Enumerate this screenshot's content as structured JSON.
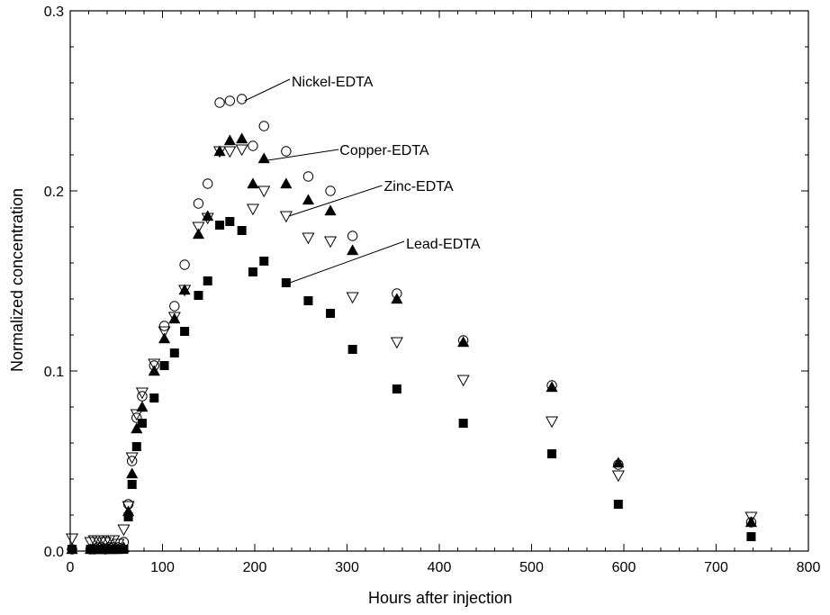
{
  "chart_data": {
    "type": "scatter",
    "xlabel": "Hours after injection",
    "ylabel": "Normalized concentration",
    "xlim": [
      0,
      800
    ],
    "ylim": [
      0,
      0.3
    ],
    "x_major_ticks": [
      0,
      100,
      200,
      300,
      400,
      500,
      600,
      700,
      800
    ],
    "x_tick_labels": [
      "0",
      "100",
      "200",
      "300",
      "400",
      "500",
      "600",
      "700",
      "800"
    ],
    "y_major_ticks": [
      0,
      0.1,
      0.2,
      0.3
    ],
    "y_tick_labels": [
      "0.0",
      "0.1",
      "0.2",
      "0.3"
    ],
    "x_minor_step": 20,
    "y_minor_step": 0.02,
    "grid": false,
    "legend": "none",
    "series": [
      {
        "name": "Nickel-EDTA",
        "marker": "open-circle",
        "points": [
          [
            2,
            0.001
          ],
          [
            22,
            0.001
          ],
          [
            26,
            0.001
          ],
          [
            30,
            0.002
          ],
          [
            34,
            0.002
          ],
          [
            38,
            0.001
          ],
          [
            42,
            0.002
          ],
          [
            47,
            0.002
          ],
          [
            52,
            0.002
          ],
          [
            58,
            0.005
          ],
          [
            63,
            0.026
          ],
          [
            67,
            0.05
          ],
          [
            72,
            0.074
          ],
          [
            78,
            0.086
          ],
          [
            91,
            0.103
          ],
          [
            102,
            0.125
          ],
          [
            113,
            0.136
          ],
          [
            124,
            0.159
          ],
          [
            139,
            0.193
          ],
          [
            149,
            0.204
          ],
          [
            162,
            0.249
          ],
          [
            173,
            0.25
          ],
          [
            186,
            0.251
          ],
          [
            198,
            0.225
          ],
          [
            210,
            0.236
          ],
          [
            234,
            0.222
          ],
          [
            258,
            0.208
          ],
          [
            282,
            0.2
          ],
          [
            306,
            0.175
          ],
          [
            354,
            0.143
          ],
          [
            426,
            0.117
          ],
          [
            522,
            0.092
          ],
          [
            594,
            0.048
          ],
          [
            738,
            0.016
          ]
        ]
      },
      {
        "name": "Copper-EDTA",
        "marker": "filled-triangle",
        "points": [
          [
            2,
            0.001
          ],
          [
            22,
            0.001
          ],
          [
            26,
            0.001
          ],
          [
            30,
            0.001
          ],
          [
            34,
            0.001
          ],
          [
            38,
            0.001
          ],
          [
            42,
            0.001
          ],
          [
            47,
            0.001
          ],
          [
            52,
            0.001
          ],
          [
            58,
            0.002
          ],
          [
            63,
            0.022
          ],
          [
            67,
            0.043
          ],
          [
            72,
            0.068
          ],
          [
            78,
            0.08
          ],
          [
            91,
            0.1
          ],
          [
            102,
            0.118
          ],
          [
            113,
            0.129
          ],
          [
            124,
            0.145
          ],
          [
            139,
            0.176
          ],
          [
            149,
            0.186
          ],
          [
            162,
            0.222
          ],
          [
            173,
            0.228
          ],
          [
            186,
            0.229
          ],
          [
            198,
            0.204
          ],
          [
            210,
            0.218
          ],
          [
            234,
            0.204
          ],
          [
            258,
            0.195
          ],
          [
            282,
            0.189
          ],
          [
            306,
            0.167
          ],
          [
            354,
            0.14
          ],
          [
            426,
            0.116
          ],
          [
            522,
            0.091
          ],
          [
            594,
            0.049
          ],
          [
            738,
            0.016
          ]
        ]
      },
      {
        "name": "Zinc-EDTA",
        "marker": "open-inverted-triangle",
        "points": [
          [
            2,
            0.007
          ],
          [
            22,
            0.005
          ],
          [
            26,
            0.006
          ],
          [
            30,
            0.006
          ],
          [
            34,
            0.006
          ],
          [
            38,
            0.005
          ],
          [
            42,
            0.006
          ],
          [
            47,
            0.006
          ],
          [
            52,
            0.004
          ],
          [
            58,
            0.012
          ],
          [
            63,
            0.025
          ],
          [
            67,
            0.052
          ],
          [
            72,
            0.076
          ],
          [
            78,
            0.088
          ],
          [
            91,
            0.104
          ],
          [
            102,
            0.122
          ],
          [
            113,
            0.13
          ],
          [
            124,
            0.145
          ],
          [
            139,
            0.18
          ],
          [
            149,
            0.185
          ],
          [
            162,
            0.222
          ],
          [
            173,
            0.222
          ],
          [
            186,
            0.223
          ],
          [
            198,
            0.19
          ],
          [
            210,
            0.2
          ],
          [
            234,
            0.186
          ],
          [
            258,
            0.174
          ],
          [
            282,
            0.172
          ],
          [
            306,
            0.141
          ],
          [
            354,
            0.116
          ],
          [
            426,
            0.095
          ],
          [
            522,
            0.072
          ],
          [
            594,
            0.042
          ],
          [
            738,
            0.019
          ]
        ]
      },
      {
        "name": "Lead-EDTA",
        "marker": "filled-square",
        "points": [
          [
            2,
            0.001
          ],
          [
            22,
            0.001
          ],
          [
            26,
            0.001
          ],
          [
            30,
            0.001
          ],
          [
            34,
            0.001
          ],
          [
            38,
            0.001
          ],
          [
            42,
            0.001
          ],
          [
            47,
            0.001
          ],
          [
            52,
            0.001
          ],
          [
            58,
            0.001
          ],
          [
            63,
            0.019
          ],
          [
            67,
            0.037
          ],
          [
            72,
            0.058
          ],
          [
            78,
            0.071
          ],
          [
            91,
            0.085
          ],
          [
            102,
            0.103
          ],
          [
            113,
            0.11
          ],
          [
            124,
            0.122
          ],
          [
            139,
            0.142
          ],
          [
            149,
            0.15
          ],
          [
            162,
            0.181
          ],
          [
            173,
            0.183
          ],
          [
            186,
            0.178
          ],
          [
            198,
            0.155
          ],
          [
            210,
            0.161
          ],
          [
            234,
            0.149
          ],
          [
            258,
            0.139
          ],
          [
            282,
            0.132
          ],
          [
            306,
            0.112
          ],
          [
            354,
            0.09
          ],
          [
            426,
            0.071
          ],
          [
            522,
            0.054
          ],
          [
            594,
            0.026
          ],
          [
            738,
            0.008
          ]
        ]
      }
    ],
    "annotations": [
      {
        "text": "Nickel-EDTA",
        "series": "Nickel-EDTA",
        "label_at": [
          240,
          0.261
        ],
        "line_from": [
          238,
          0.262
        ],
        "line_to": [
          189,
          0.25
        ]
      },
      {
        "text": "Copper-EDTA",
        "series": "Copper-EDTA",
        "label_at": [
          292,
          0.223
        ],
        "line_from": [
          291,
          0.223
        ],
        "line_to": [
          214,
          0.217
        ]
      },
      {
        "text": "Zinc-EDTA",
        "series": "Zinc-EDTA",
        "label_at": [
          340,
          0.203
        ],
        "line_from": [
          338,
          0.203
        ],
        "line_to": [
          237,
          0.186
        ]
      },
      {
        "text": "Lead-EDTA",
        "series": "Lead-EDTA",
        "label_at": [
          364,
          0.171
        ],
        "line_from": [
          362,
          0.172
        ],
        "line_to": [
          238,
          0.149
        ]
      }
    ]
  }
}
